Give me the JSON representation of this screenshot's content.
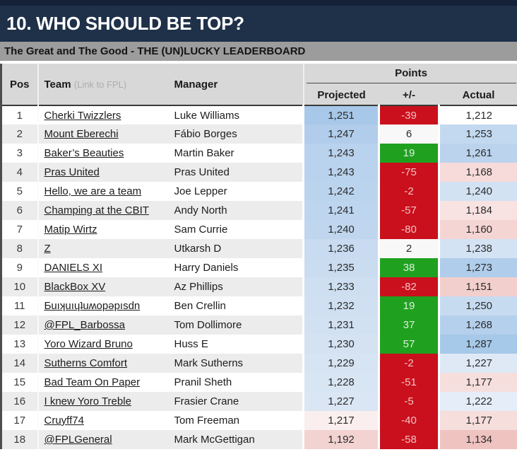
{
  "title": "10. WHO SHOULD BE TOP?",
  "subtitle": "The Great and The Good - THE (UN)LUCKY LEADERBOARD",
  "colors": {
    "title_navy": "#1f3049",
    "subtitle_gray": "#9c9c9c",
    "positive_green": "#1fa11f",
    "negative_red": "#c9101c",
    "scale_blue_max": "#a6c8e9",
    "scale_pink_max": "#eec3c0"
  },
  "table": {
    "headers": {
      "pos": "Pos",
      "team": "Team",
      "team_note": "(Link to FPL)",
      "manager": "Manager",
      "points_group": "Points",
      "projected": "Projected",
      "diff": "+/-",
      "actual": "Actual"
    },
    "rows": [
      {
        "pos": "1",
        "team": "Cherki Twizzlers",
        "manager": "Luke Williams",
        "projected": "1,251",
        "diff": "-39",
        "actual": "1,212",
        "projected_bg": "#a7c8e9",
        "diff_bg": "#c9101c",
        "diff_fg": "#f4c2c5",
        "actual_bg": "#ffffff"
      },
      {
        "pos": "2",
        "team": "Mount Eberechi",
        "manager": "Fábio Borges",
        "projected": "1,247",
        "diff": "6",
        "actual": "1,253",
        "projected_bg": "#b1cdeb",
        "diff_bg": "#f8f8f8",
        "diff_fg": "#2b2b2b",
        "actual_bg": "#c3d9ef"
      },
      {
        "pos": "3",
        "team": "Baker’s Beauties",
        "manager": "Martin Baker",
        "projected": "1,243",
        "diff": "19",
        "actual": "1,261",
        "projected_bg": "#b9d2ed",
        "diff_bg": "#1fa11f",
        "diff_fg": "#ddefdd",
        "actual_bg": "#bbd3ed"
      },
      {
        "pos": "4",
        "team": "Pras United",
        "manager": "Pras United",
        "projected": "1,243",
        "diff": "-75",
        "actual": "1,168",
        "projected_bg": "#b9d2ed",
        "diff_bg": "#c9101c",
        "diff_fg": "#f4c2c5",
        "actual_bg": "#f6dbda"
      },
      {
        "pos": "5",
        "team": "Hello, we are a team",
        "manager": "Joe Lepper",
        "projected": "1,242",
        "diff": "-2",
        "actual": "1,240",
        "projected_bg": "#bbd4ee",
        "diff_bg": "#c9101c",
        "diff_fg": "#f4c2c5",
        "actual_bg": "#d2e2f3"
      },
      {
        "pos": "6",
        "team": "Champing at the CBIT",
        "manager": "Andy North",
        "projected": "1,241",
        "diff": "-57",
        "actual": "1,184",
        "projected_bg": "#bdd5ee",
        "diff_bg": "#c9101c",
        "diff_fg": "#f4c2c5",
        "actual_bg": "#f8e3e2"
      },
      {
        "pos": "7",
        "team": "Matip Wirtz",
        "manager": "Sam Currie",
        "projected": "1,240",
        "diff": "-80",
        "actual": "1,160",
        "projected_bg": "#bfd6ee",
        "diff_bg": "#c9101c",
        "diff_fg": "#f4c2c5",
        "actual_bg": "#f4d5d3"
      },
      {
        "pos": "8",
        "team": "Z",
        "manager": "Utkarsh D",
        "projected": "1,236",
        "diff": "2",
        "actual": "1,238",
        "projected_bg": "#c8dbf0",
        "diff_bg": "#f8f8f8",
        "diff_fg": "#2b2b2b",
        "actual_bg": "#d4e3f3"
      },
      {
        "pos": "9",
        "team": "DANIELS XI",
        "manager": "Harry Daniels",
        "projected": "1,235",
        "diff": "38",
        "actual": "1,273",
        "projected_bg": "#cadcf0",
        "diff_bg": "#1fa11f",
        "diff_fg": "#ddefdd",
        "actual_bg": "#b0cdeb"
      },
      {
        "pos": "10",
        "team": "BlackBox XV",
        "manager": "Az Phillips",
        "projected": "1,233",
        "diff": "-82",
        "actual": "1,151",
        "projected_bg": "#cedff1",
        "diff_bg": "#c9101c",
        "diff_fg": "#f4c2c5",
        "actual_bg": "#f2cfcc"
      },
      {
        "pos": "11",
        "team": "Ƃuıʞuıɥʇuʍopǝpısdn",
        "manager": "Ben Crellin",
        "projected": "1,232",
        "diff": "19",
        "actual": "1,250",
        "projected_bg": "#d0e0f2",
        "diff_bg": "#1fa11f",
        "diff_fg": "#ddefdd",
        "actual_bg": "#c7dbf0"
      },
      {
        "pos": "12",
        "team": "@FPL_Barbossa",
        "manager": "Tom Dollimore",
        "projected": "1,231",
        "diff": "37",
        "actual": "1,268",
        "projected_bg": "#d2e1f2",
        "diff_bg": "#1fa11f",
        "diff_fg": "#ddefdd",
        "actual_bg": "#b5d0ec"
      },
      {
        "pos": "13",
        "team": "Yoro Wizard Bruno",
        "manager": "Huss E",
        "projected": "1,230",
        "diff": "57",
        "actual": "1,287",
        "projected_bg": "#d4e2f2",
        "diff_bg": "#1fa11f",
        "diff_fg": "#ddefdd",
        "actual_bg": "#a6c8e9"
      },
      {
        "pos": "14",
        "team": "Sutherns Comfort",
        "manager": "Mark Sutherns",
        "projected": "1,229",
        "diff": "-2",
        "actual": "1,227",
        "projected_bg": "#d6e4f3",
        "diff_bg": "#c9101c",
        "diff_fg": "#f4c2c5",
        "actual_bg": "#dfe9f6"
      },
      {
        "pos": "15",
        "team": "Bad Team On Paper",
        "manager": "Pranil Sheth",
        "projected": "1,228",
        "diff": "-51",
        "actual": "1,177",
        "projected_bg": "#d8e5f3",
        "diff_bg": "#c9101c",
        "diff_fg": "#f4c2c5",
        "actual_bg": "#f6dedd"
      },
      {
        "pos": "16",
        "team": "I knew Yoro Treble",
        "manager": "Frasier Crane",
        "projected": "1,227",
        "diff": "-5",
        "actual": "1,222",
        "projected_bg": "#dae6f4",
        "diff_bg": "#c9101c",
        "diff_fg": "#f4c2c5",
        "actual_bg": "#e4edf8"
      },
      {
        "pos": "17",
        "team": "Cruyff74",
        "manager": "Tom Freeman",
        "projected": "1,217",
        "diff": "-40",
        "actual": "1,177",
        "projected_bg": "#faefee",
        "diff_bg": "#c9101c",
        "diff_fg": "#f4c2c5",
        "actual_bg": "#f6dedd"
      },
      {
        "pos": "18",
        "team": "@FPLGeneral",
        "manager": "Mark McGettigan",
        "projected": "1,192",
        "diff": "-58",
        "actual": "1,134",
        "projected_bg": "#f2d3d2",
        "diff_bg": "#c9101c",
        "diff_fg": "#f4c2c5",
        "actual_bg": "#eec3c0"
      }
    ]
  }
}
